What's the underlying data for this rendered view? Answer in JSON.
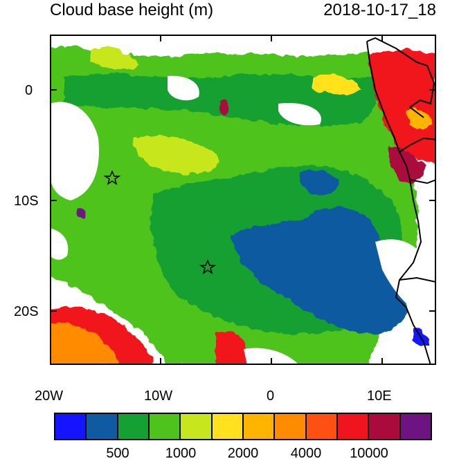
{
  "title": "Cloud base height (m)",
  "timestamp": "2018-10-17_18",
  "axes": {
    "x_ticks": [
      "20W",
      "10W",
      "0",
      "10E"
    ],
    "y_ticks": [
      "0",
      "10S",
      "20S"
    ]
  },
  "colorbar": {
    "colors": [
      "#1414ff",
      "#0f5aa0",
      "#14a032",
      "#4ec31e",
      "#c8e61e",
      "#ffe11e",
      "#ffb400",
      "#ff8c00",
      "#ff5014",
      "#f0141e",
      "#aa0a3c",
      "#6e1482"
    ],
    "labels": [
      "500",
      "1000",
      "2000",
      "4000",
      "10000"
    ]
  },
  "markers": [
    "star",
    "star"
  ]
}
